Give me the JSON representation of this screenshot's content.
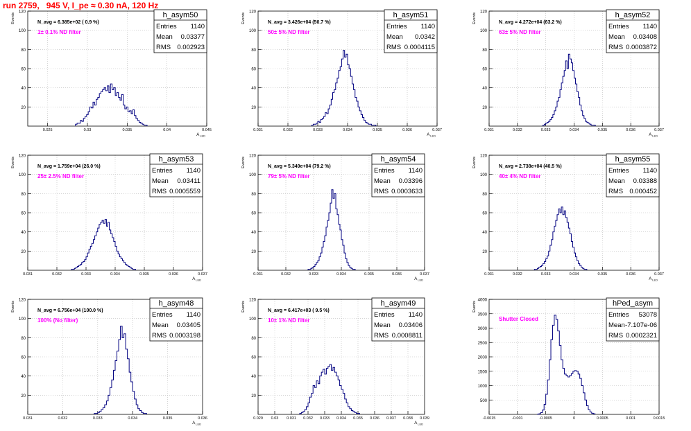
{
  "run_title": "run 2759,   945 V, I_pe ≈ 0.30 nA, 120 Hz",
  "colors": {
    "hist_line": "#000080",
    "note_text": "#ff00ff",
    "run_title": "#ff0000",
    "axis": "#000000"
  },
  "chart_data": [
    {
      "type": "bar",
      "title": "h_asym50",
      "ylabel": "Events",
      "xlabel": "A_LED",
      "navg": "N_avg = 6.385e+02 ( 0.9 %)",
      "note": "1± 0.1% ND filter",
      "stats": {
        "entries_label": "Entries",
        "entries": "1140",
        "mean_label": "Mean",
        "mean": "0.03377",
        "rms_label": "RMS",
        "rms": "0.002923"
      },
      "xlim": [
        0.0225,
        0.045
      ],
      "ylim": [
        0,
        120
      ],
      "xticks": [
        "0.025",
        "0.03",
        "0.035",
        "0.04",
        "0.045"
      ],
      "xtick_values": [
        0.025,
        0.03,
        0.035,
        0.04,
        0.045
      ],
      "yticks": [
        "20",
        "40",
        "60",
        "80",
        "100",
        "120"
      ],
      "grid": true,
      "bin_start": 0.0285,
      "bin_width": 0.0002,
      "values": [
        2,
        3,
        3,
        6,
        5,
        8,
        10,
        12,
        15,
        20,
        19,
        25,
        22,
        28,
        30,
        34,
        36,
        38,
        40,
        37,
        42,
        35,
        44,
        38,
        40,
        32,
        35,
        30,
        27,
        33,
        22,
        18,
        20,
        15,
        16,
        13,
        17,
        11,
        8,
        6,
        4,
        3,
        2,
        1,
        1
      ]
    },
    {
      "type": "bar",
      "title": "h_asym51",
      "ylabel": "Events",
      "xlabel": "A_LED",
      "navg": "N_avg = 3.426e+04 (50.7 %)",
      "note": "50± 5% ND filter",
      "stats": {
        "entries_label": "Entries",
        "entries": "1140",
        "mean_label": "Mean",
        "mean": "0.0342",
        "rms_label": "RMS",
        "rms": "0.0004115"
      },
      "xlim": [
        0.031,
        0.037
      ],
      "ylim": [
        0,
        120
      ],
      "xticks": [
        "0.031",
        "0.032",
        "0.033",
        "0.034",
        "0.035",
        "0.036",
        "0.037"
      ],
      "xtick_values": [
        0.031,
        0.032,
        0.033,
        0.034,
        0.035,
        0.036,
        0.037
      ],
      "yticks": [
        "20",
        "40",
        "60",
        "80",
        "100",
        "120"
      ],
      "grid": true,
      "bin_start": 0.0328,
      "bin_width": 5e-05,
      "values": [
        1,
        2,
        2,
        3,
        5,
        4,
        7,
        8,
        10,
        14,
        13,
        18,
        22,
        28,
        35,
        38,
        45,
        50,
        58,
        62,
        70,
        79,
        72,
        75,
        64,
        60,
        52,
        44,
        38,
        30,
        26,
        20,
        16,
        12,
        9,
        6,
        4,
        3,
        2,
        2,
        1,
        1,
        1
      ]
    },
    {
      "type": "bar",
      "title": "h_asym52",
      "ylabel": "Events",
      "xlabel": "A_LED",
      "navg": "N_avg = 4.272e+04 (63.2 %)",
      "note": "63± 5% ND filter",
      "stats": {
        "entries_label": "Entries",
        "entries": "1140",
        "mean_label": "Mean",
        "mean": "0.03408",
        "rms_label": "RMS",
        "rms": "0.0003872"
      },
      "xlim": [
        0.031,
        0.037
      ],
      "ylim": [
        0,
        120
      ],
      "xticks": [
        "0.031",
        "0.032",
        "0.033",
        "0.034",
        "0.035",
        "0.036",
        "0.037"
      ],
      "xtick_values": [
        0.031,
        0.032,
        0.033,
        0.034,
        0.035,
        0.036,
        0.037
      ],
      "yticks": [
        "20",
        "40",
        "60",
        "80",
        "100",
        "120"
      ],
      "grid": true,
      "bin_start": 0.0329,
      "bin_width": 5e-05,
      "values": [
        1,
        2,
        3,
        4,
        5,
        7,
        9,
        12,
        16,
        20,
        26,
        30,
        38,
        45,
        52,
        58,
        68,
        60,
        75,
        70,
        66,
        58,
        50,
        44,
        36,
        30,
        22,
        16,
        11,
        8,
        5,
        4,
        3,
        2,
        1,
        1,
        1
      ]
    },
    {
      "type": "bar",
      "title": "h_asym53",
      "ylabel": "Events",
      "xlabel": "A_LED",
      "navg": "N_avg = 1.759e+04 (26.0 %)",
      "note": "25± 2.5% ND filter",
      "stats": {
        "entries_label": "Entries",
        "entries": "1140",
        "mean_label": "Mean",
        "mean": "0.03411",
        "rms_label": "RMS",
        "rms": "0.0005559"
      },
      "xlim": [
        0.031,
        0.037
      ],
      "ylim": [
        0,
        120
      ],
      "xticks": [
        "0.031",
        "0.032",
        "0.033",
        "0.034",
        "0.035",
        "0.036",
        "0.037"
      ],
      "xtick_values": [
        0.031,
        0.032,
        0.033,
        0.034,
        0.035,
        0.036,
        0.037
      ],
      "yticks": [
        "20",
        "40",
        "60",
        "80",
        "100",
        "120"
      ],
      "grid": true,
      "bin_start": 0.0325,
      "bin_width": 5e-05,
      "values": [
        1,
        1,
        2,
        3,
        4,
        5,
        6,
        8,
        9,
        11,
        14,
        18,
        22,
        25,
        28,
        32,
        36,
        40,
        44,
        48,
        50,
        52,
        49,
        53,
        46,
        50,
        42,
        38,
        34,
        30,
        25,
        20,
        17,
        14,
        12,
        10,
        8,
        6,
        5,
        4,
        3,
        2,
        1,
        1
      ]
    },
    {
      "type": "bar",
      "title": "h_asym54",
      "ylabel": "Events",
      "xlabel": "A_LED",
      "navg": "N_avg = 5.349e+04 (79.2 %)",
      "note": "79± 5% ND filter",
      "stats": {
        "entries_label": "Entries",
        "entries": "1140",
        "mean_label": "Mean",
        "mean": "0.03396",
        "rms_label": "RMS",
        "rms": "0.0003633"
      },
      "xlim": [
        0.031,
        0.037
      ],
      "ylim": [
        0,
        120
      ],
      "xticks": [
        "0.031",
        "0.032",
        "0.033",
        "0.034",
        "0.035",
        "0.036",
        "0.037"
      ],
      "xtick_values": [
        0.031,
        0.032,
        0.033,
        0.034,
        0.035,
        0.036,
        0.037
      ],
      "yticks": [
        "20",
        "40",
        "60",
        "80",
        "100",
        "120"
      ],
      "grid": true,
      "bin_start": 0.0328,
      "bin_width": 5e-05,
      "values": [
        1,
        1,
        2,
        3,
        4,
        6,
        8,
        10,
        14,
        18,
        24,
        30,
        36,
        45,
        52,
        60,
        70,
        84,
        75,
        80,
        64,
        58,
        48,
        42,
        32,
        26,
        18,
        12,
        8,
        5,
        3,
        2,
        1,
        1
      ]
    },
    {
      "type": "bar",
      "title": "h_asym55",
      "ylabel": "Events",
      "xlabel": "A_LED",
      "navg": "N_avg = 2.738e+04 (40.5 %)",
      "note": "40± 4% ND filter",
      "stats": {
        "entries_label": "Entries",
        "entries": "1140",
        "mean_label": "Mean",
        "mean": "0.03388",
        "rms_label": "RMS",
        "rms": "0.000452"
      },
      "xlim": [
        0.031,
        0.037
      ],
      "ylim": [
        0,
        120
      ],
      "xticks": [
        "0.031",
        "0.032",
        "0.033",
        "0.034",
        "0.035",
        "0.036",
        "0.037"
      ],
      "xtick_values": [
        0.031,
        0.032,
        0.033,
        0.034,
        0.035,
        0.036,
        0.037
      ],
      "yticks": [
        "20",
        "40",
        "60",
        "80",
        "100",
        "120"
      ],
      "grid": true,
      "bin_start": 0.0326,
      "bin_width": 5e-05,
      "values": [
        1,
        1,
        2,
        3,
        4,
        5,
        7,
        9,
        12,
        15,
        20,
        26,
        32,
        40,
        46,
        52,
        58,
        64,
        60,
        66,
        58,
        62,
        55,
        50,
        44,
        38,
        30,
        24,
        18,
        14,
        10,
        7,
        5,
        3,
        2,
        1,
        1
      ]
    },
    {
      "type": "bar",
      "title": "h_asym48",
      "ylabel": "Events",
      "xlabel": "A_LED",
      "navg": "N_avg = 6.756e+04 (100.0 %)",
      "note": "100% (No filter)",
      "stats": {
        "entries_label": "Entries",
        "entries": "1140",
        "mean_label": "Mean",
        "mean": "0.03405",
        "rms_label": "RMS",
        "rms": "0.0003198"
      },
      "xlim": [
        0.031,
        0.036
      ],
      "ylim": [
        0,
        120
      ],
      "xticks": [
        "0.031",
        "0.032",
        "0.033",
        "0.034",
        "0.035",
        "0.036"
      ],
      "xtick_values": [
        0.031,
        0.032,
        0.033,
        0.034,
        0.035,
        0.036
      ],
      "yticks": [
        "20",
        "40",
        "60",
        "80",
        "100",
        "120"
      ],
      "grid": true,
      "bin_start": 0.0329,
      "bin_width": 5e-05,
      "values": [
        1,
        1,
        2,
        3,
        5,
        7,
        10,
        14,
        20,
        28,
        36,
        46,
        56,
        66,
        78,
        92,
        80,
        84,
        68,
        58,
        44,
        34,
        24,
        16,
        10,
        6,
        4,
        2,
        1,
        1
      ]
    },
    {
      "type": "bar",
      "title": "h_asym49",
      "ylabel": "Events",
      "xlabel": "A_LED",
      "navg": "N_avg = 6.417e+03 ( 9.5 %)",
      "note": "10± 1% ND filter",
      "stats": {
        "entries_label": "Entries",
        "entries": "1140",
        "mean_label": "Mean",
        "mean": "0.03406",
        "rms_label": "RMS",
        "rms": "0.0008811"
      },
      "xlim": [
        0.029,
        0.039
      ],
      "ylim": [
        0,
        120
      ],
      "xticks": [
        "0.029",
        "0.03",
        "0.031",
        "0.032",
        "0.033",
        "0.034",
        "0.035",
        "0.036",
        "0.037",
        "0.038",
        "0.039"
      ],
      "xtick_values": [
        0.029,
        0.03,
        0.031,
        0.032,
        0.033,
        0.034,
        0.035,
        0.036,
        0.037,
        0.038,
        0.039
      ],
      "yticks": [
        "20",
        "40",
        "60",
        "80",
        "100",
        "120"
      ],
      "grid": true,
      "bin_start": 0.0315,
      "bin_width": 0.0001,
      "values": [
        1,
        2,
        3,
        5,
        8,
        12,
        18,
        22,
        30,
        28,
        35,
        32,
        40,
        44,
        47,
        42,
        48,
        50,
        52,
        46,
        49,
        44,
        40,
        36,
        30,
        26,
        22,
        16,
        12,
        8,
        6,
        4,
        3,
        2,
        1,
        1
      ]
    },
    {
      "type": "bar",
      "title": "hPed_asym",
      "ylabel": "Events",
      "xlabel": "",
      "navg": "",
      "note": "Shutter Closed",
      "stats": {
        "entries_label": "Entries",
        "entries": "53078",
        "mean_label": "Mean",
        "mean": "-7.107e-06",
        "rms_label": "RMS",
        "rms": "0.0002321"
      },
      "xlim": [
        -0.0015,
        0.0015
      ],
      "ylim": [
        0,
        4000
      ],
      "xticks": [
        "-0.0015",
        "-0.001",
        "-0.0005",
        "0",
        "0.0005",
        "0.001",
        "0.0015"
      ],
      "xtick_values": [
        -0.0015,
        -0.001,
        -0.0005,
        0,
        0.0005,
        0.001,
        0.0015
      ],
      "yticks": [
        "500",
        "1000",
        "1500",
        "2000",
        "2500",
        "3000",
        "3500",
        "4000"
      ],
      "grid": true,
      "bin_start": -0.00065,
      "bin_width": 3e-05,
      "values": [
        5,
        20,
        60,
        150,
        350,
        700,
        1200,
        1900,
        2600,
        3100,
        3450,
        3300,
        2900,
        2400,
        1900,
        1600,
        1400,
        1350,
        1300,
        1350,
        1420,
        1500,
        1520,
        1500,
        1400,
        1250,
        1000,
        750,
        500,
        300,
        160,
        80,
        40,
        20
      ]
    }
  ]
}
